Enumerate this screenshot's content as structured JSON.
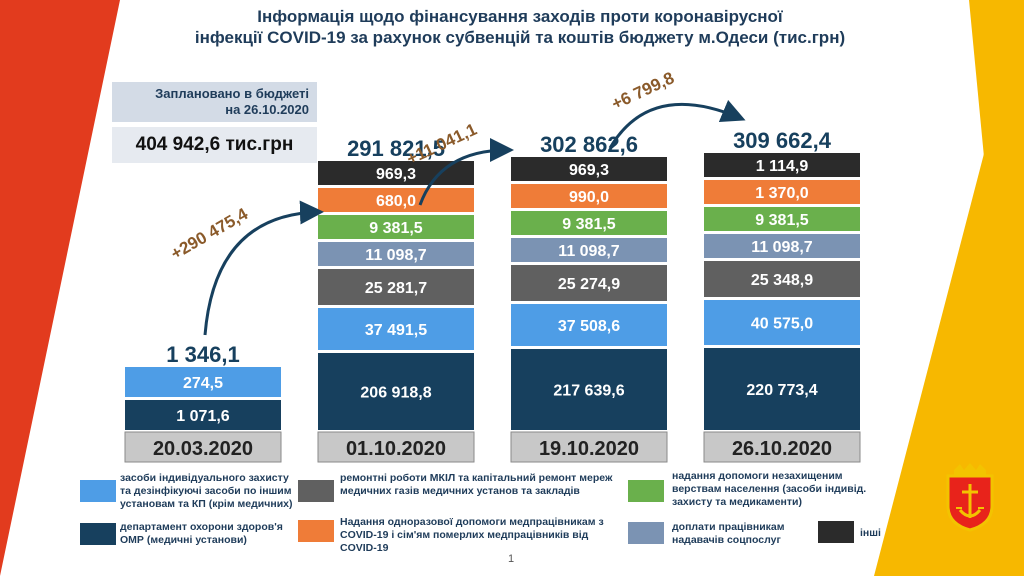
{
  "title_line1": "Інформація щодо фінансування заходів проти коронавірусної",
  "title_line2": "інфекції COVID-19 за рахунок субвенцій та коштів бюджету м.Одеси (тис.грн)",
  "budget": {
    "label_line1": "Заплановано в бюджеті",
    "label_line2": "на 26.10.2020",
    "value": "404 942,6 тис.грн"
  },
  "colors": {
    "ppe": "#4e9de6",
    "dept": "#17405e",
    "repair": "#606060",
    "aid_poor": "#6ab04c",
    "aid_medics": "#ef7c38",
    "social": "#7b93b3",
    "other": "#2b2b2b",
    "date_bg": "#c8c8c8",
    "stripe_left": "#e23b1e",
    "stripe_right": "#f7b800"
  },
  "page_number": "1",
  "chart_data": {
    "type": "bar",
    "stacked": true,
    "categories": [
      "20.03.2020",
      "01.10.2020",
      "19.10.2020",
      "26.10.2020"
    ],
    "totals": [
      1346.1,
      291821.5,
      302862.6,
      309662.4
    ],
    "total_labels": [
      "1 346,1",
      "291 821,5",
      "302 862,6",
      "309 662,4"
    ],
    "increments": [
      "+290 475,4",
      "+11 041,1",
      "+6 799,8"
    ],
    "series": [
      {
        "key": "dept",
        "name": "департамент охорони здоров'я ОМР (медичні установи)",
        "values": [
          1071.6,
          206918.8,
          217639.6,
          220773.4
        ],
        "labels": [
          "1 071,6",
          "206 918,8",
          "217 639,6",
          "220 773,4"
        ]
      },
      {
        "key": "ppe",
        "name": "засоби індивідуального захисту та дезінфікуючі засоби по іншим установам та КП (крім медичних)",
        "values": [
          274.5,
          37491.5,
          37508.6,
          40575.0
        ],
        "labels": [
          "274,5",
          "37 491,5",
          "37 508,6",
          "40 575,0"
        ]
      },
      {
        "key": "repair",
        "name": "ремонтні роботи МКІЛ та капітальний ремонт мереж медичних газів медичних установ та закладів",
        "values": [
          0,
          25281.7,
          25274.9,
          25348.9
        ],
        "labels": [
          "",
          "25 281,7",
          "25 274,9",
          "25 348,9"
        ]
      },
      {
        "key": "social",
        "name": "доплати працівникам надавачів соцпослуг",
        "values": [
          0,
          11098.7,
          11098.7,
          11098.7
        ],
        "labels": [
          "",
          "11 098,7",
          "11 098,7",
          "11 098,7"
        ]
      },
      {
        "key": "aid_poor",
        "name": "надання допомоги незахищеним верствам населення (засоби індивід. захисту та медикаменти)",
        "values": [
          0,
          9381.5,
          9381.5,
          9381.5
        ],
        "labels": [
          "",
          "9 381,5",
          "9 381,5",
          "9 381,5"
        ]
      },
      {
        "key": "aid_medics",
        "name": "Надання одноразової допомоги медпрацівникам з COVID-19 і сім'ям померлих медпрацівників від COVID-19",
        "values": [
          0,
          680.0,
          990.0,
          1370.0
        ],
        "labels": [
          "",
          "680,0",
          "990,0",
          "1 370,0"
        ]
      },
      {
        "key": "other",
        "name": "інші",
        "values": [
          0,
          969.3,
          969.3,
          1114.9
        ],
        "labels": [
          "",
          "969,3",
          "969,3",
          "1 114,9"
        ]
      }
    ]
  },
  "legend": {
    "ppe_line1": "засоби індивідуального захисту",
    "ppe_line2": "та дезінфікуючі засоби по іншим",
    "ppe_line3": "установам та КП (крім медичних)",
    "dept_line1": "департамент охорони здоров'я",
    "dept_line2": "ОМР (медичні установи)",
    "repair_line1": "ремонтні роботи МКІЛ та капітальний ремонт мереж",
    "repair_line2": "медичних газів медичних установ та закладів",
    "aid_medics_line1": "Надання одноразової допомоги медпрацівникам з",
    "aid_medics_line2": "COVID-19 і сім'ям померлих медпрацівників від",
    "aid_medics_line3": "COVID-19",
    "aid_poor_line1": "надання допомоги незахищеним",
    "aid_poor_line2": "верствам населення (засоби індивід.",
    "aid_poor_line3": "захисту та медикаменти)",
    "social_line1": "доплати працівникам",
    "social_line2": "надавачів соцпослуг",
    "other": "інші"
  }
}
